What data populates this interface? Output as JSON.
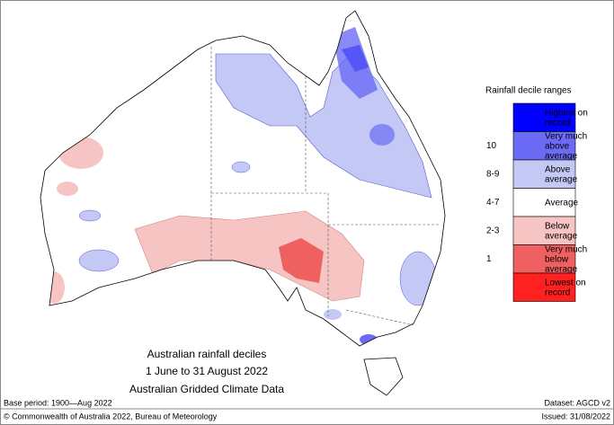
{
  "map": {
    "caption": [
      "Australian rainfall deciles",
      "1 June to 31 August 2022",
      "Australian Gridded Climate Data"
    ],
    "legend": {
      "title": "Rainfall decile ranges",
      "items": [
        {
          "label": "Highest on record",
          "color": "#0000ff"
        },
        {
          "range": "10",
          "label": "Very much above average",
          "color": "#6b6bf5"
        },
        {
          "range": "8-9",
          "label": "Above average",
          "color": "#c4c8f5"
        },
        {
          "range": "4-7",
          "label": "Average",
          "color": "#ffffff"
        },
        {
          "range": "2-3",
          "label": "Below average",
          "color": "#f7c4c4"
        },
        {
          "range": "1",
          "label": "Very much below average",
          "color": "#ef6060"
        },
        {
          "label": "Lowest on record",
          "color": "#ff2020"
        }
      ]
    },
    "footer": {
      "base_period": "Base period: 1900—Aug 2022",
      "dataset": "Dataset: AGCD v2",
      "copyright": "© Commonwealth of Australia 2022, Bureau of Meteorology",
      "issued": "Issued: 31/08/2022"
    }
  }
}
